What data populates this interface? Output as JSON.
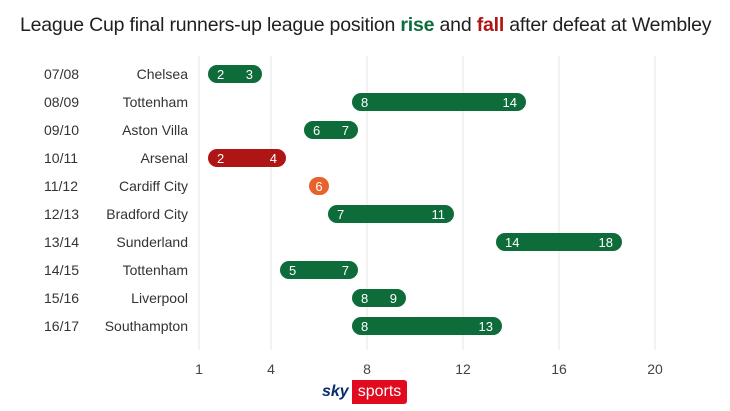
{
  "title": {
    "before": "League Cup final runners-up league position ",
    "rise": "rise",
    "middle": " and ",
    "fall": "fall",
    "after": " after defeat at Wembley"
  },
  "logo": {
    "sky": "sky",
    "sports": "sports"
  },
  "colors": {
    "rise": "#0e6b3a",
    "fall": "#b01515",
    "same": "#e8622d",
    "grid": "#e6e6e6",
    "text": "#333333"
  },
  "chart_data": {
    "type": "dumbbell",
    "xlim": [
      1,
      20
    ],
    "x_ticks": [
      1,
      4,
      8,
      12,
      16,
      20
    ],
    "grid": true,
    "rows": [
      {
        "season": "07/08",
        "team": "Chelsea",
        "from": 2,
        "to": 3,
        "direction": "rise"
      },
      {
        "season": "08/09",
        "team": "Tottenham",
        "from": 8,
        "to": 14,
        "direction": "rise"
      },
      {
        "season": "09/10",
        "team": "Aston Villa",
        "from": 6,
        "to": 7,
        "direction": "rise"
      },
      {
        "season": "10/11",
        "team": "Arsenal",
        "from": 2,
        "to": 4,
        "direction": "fall"
      },
      {
        "season": "11/12",
        "team": "Cardiff City",
        "from": 6,
        "to": 6,
        "direction": "same"
      },
      {
        "season": "12/13",
        "team": "Bradford City",
        "from": 7,
        "to": 11,
        "direction": "rise"
      },
      {
        "season": "13/14",
        "team": "Sunderland",
        "from": 14,
        "to": 18,
        "direction": "rise"
      },
      {
        "season": "14/15",
        "team": "Tottenham",
        "from": 5,
        "to": 7,
        "direction": "rise"
      },
      {
        "season": "15/16",
        "team": "Liverpool",
        "from": 8,
        "to": 9,
        "direction": "rise"
      },
      {
        "season": "16/17",
        "team": "Southampton",
        "from": 8,
        "to": 13,
        "direction": "rise"
      }
    ]
  }
}
